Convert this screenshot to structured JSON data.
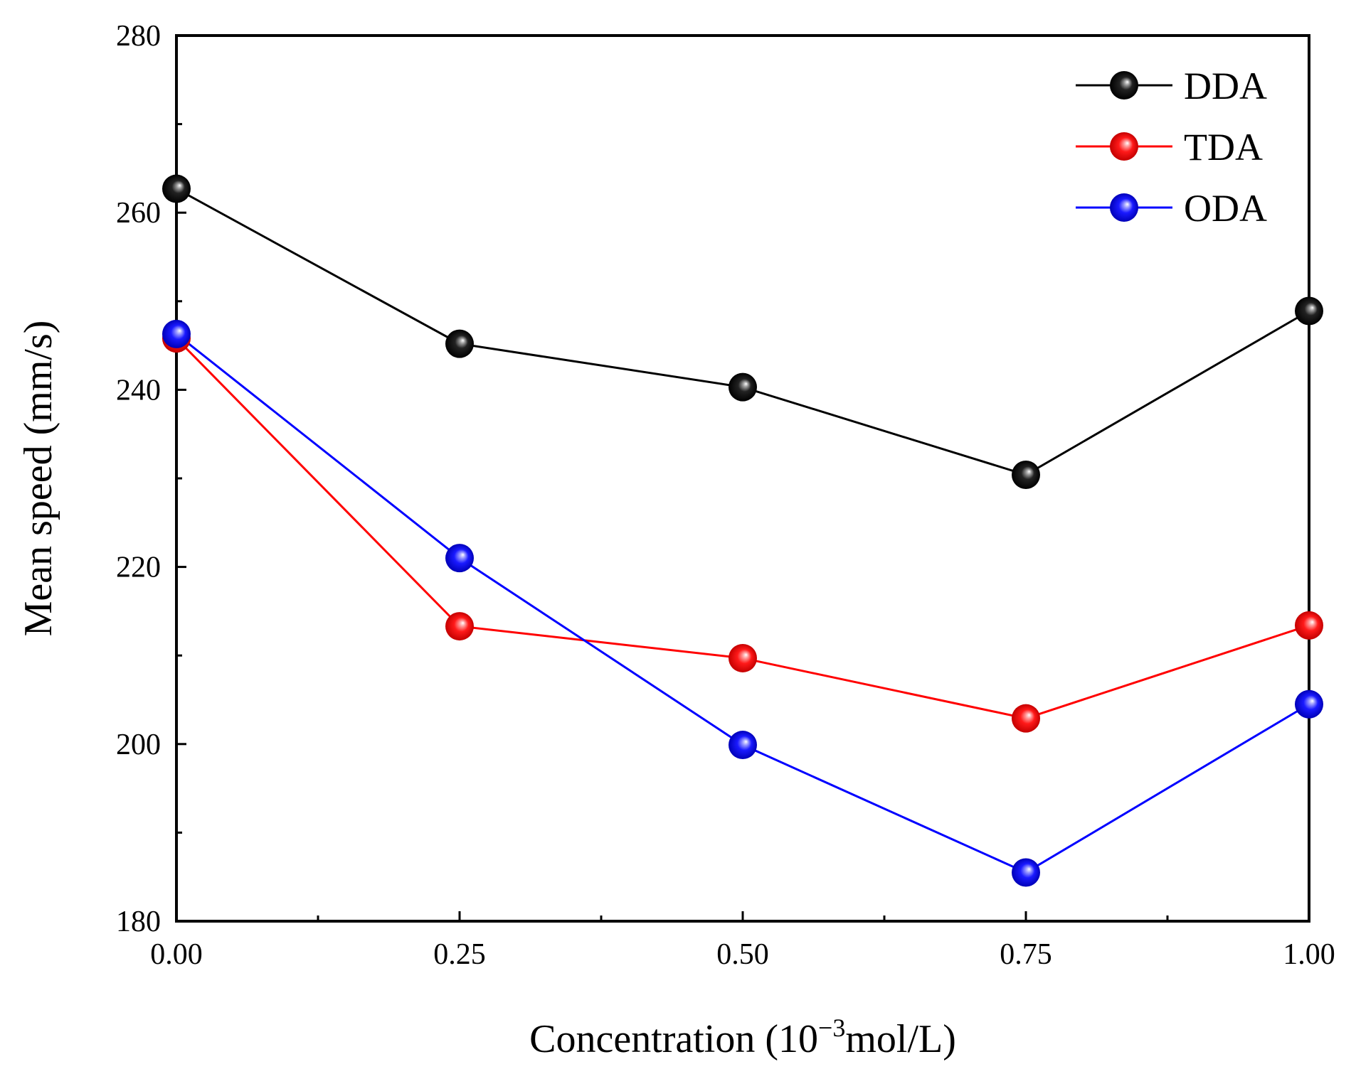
{
  "chart_data": {
    "type": "line",
    "title": "",
    "xlabel": "Concentration (10",
    "xlabel_superscript": "−3",
    "xlabel_suffix": "mol/L)",
    "ylabel": "Mean speed (mm/s)",
    "x": [
      0.0,
      0.25,
      0.5,
      0.75,
      1.0
    ],
    "xlim": [
      0.0,
      1.0
    ],
    "ylim": [
      180,
      280
    ],
    "x_ticks": [
      "0.00",
      "0.25",
      "0.50",
      "0.75",
      "1.00"
    ],
    "x_tick_values": [
      0.0,
      0.25,
      0.5,
      0.75,
      1.0
    ],
    "x_minor_ticks": [
      0.125,
      0.375,
      0.625,
      0.875
    ],
    "y_ticks": [
      "180",
      "200",
      "220",
      "240",
      "260",
      "280"
    ],
    "y_tick_values": [
      180,
      200,
      220,
      240,
      260,
      280
    ],
    "y_minor_ticks": [
      190,
      210,
      230,
      250,
      270
    ],
    "grid": false,
    "legend_position": "top-right",
    "series": [
      {
        "name": "DDA",
        "color": "#000000",
        "values": [
          262.7,
          245.2,
          240.3,
          230.4,
          248.9
        ]
      },
      {
        "name": "TDA",
        "color": "#ff0000",
        "values": [
          245.8,
          213.3,
          209.7,
          202.9,
          213.4
        ]
      },
      {
        "name": "ODA",
        "color": "#0000ff",
        "values": [
          246.3,
          221.0,
          199.9,
          185.5,
          204.5
        ]
      }
    ]
  }
}
